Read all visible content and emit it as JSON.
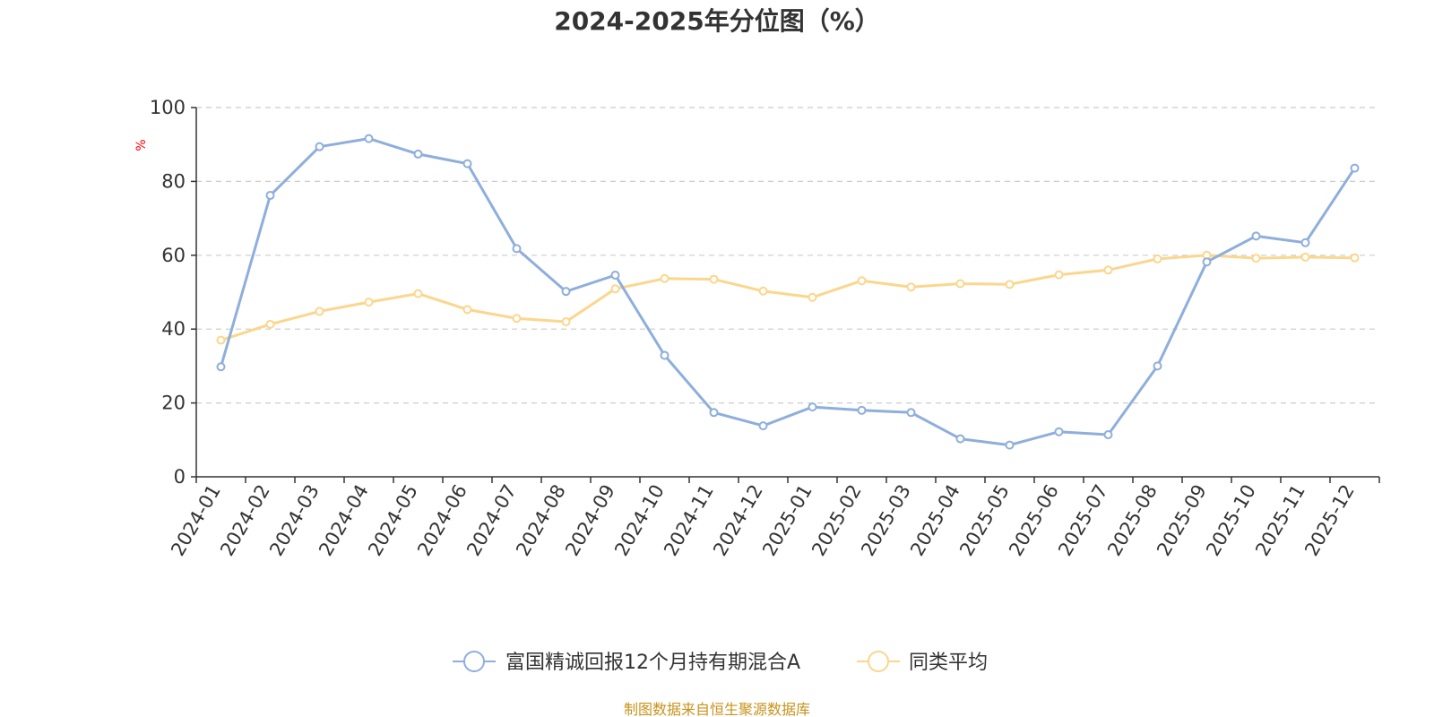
{
  "chart_data": {
    "type": "line",
    "title": "2024-2025年分位图（%）",
    "ylabel": "%",
    "xlabel": "",
    "ylim": [
      0,
      100
    ],
    "yticks": [
      0,
      20,
      40,
      60,
      80,
      100
    ],
    "grid": true,
    "legend_position": "bottom-center",
    "categories": [
      "2024-01",
      "2024-02",
      "2024-03",
      "2024-04",
      "2024-05",
      "2024-06",
      "2024-07",
      "2024-08",
      "2024-09",
      "2024-10",
      "2024-11",
      "2024-12",
      "2025-01",
      "2025-02",
      "2025-03",
      "2025-04",
      "2025-05",
      "2025-06",
      "2025-07",
      "2025-08",
      "2025-09",
      "2025-10",
      "2025-11",
      "2025-12"
    ],
    "series": [
      {
        "name": "富国精诚回报12个月持有期混合A",
        "color": "#8eaedc",
        "values": [
          29.8,
          76.2,
          89.4,
          91.6,
          87.4,
          84.8,
          61.8,
          50.2,
          54.6,
          32.9,
          17.4,
          13.8,
          18.9,
          18.0,
          17.4,
          10.3,
          8.6,
          12.2,
          11.4,
          30.0,
          58.2,
          65.2,
          63.4,
          83.6
        ]
      },
      {
        "name": "同类平均",
        "color": "#fbd68d",
        "values": [
          37.0,
          41.3,
          44.8,
          47.3,
          49.6,
          45.3,
          42.9,
          42.0,
          50.9,
          53.7,
          53.5,
          50.3,
          48.6,
          53.1,
          51.4,
          52.3,
          52.1,
          54.7,
          56.0,
          59.0,
          60.0,
          59.2,
          59.5,
          59.3
        ]
      }
    ],
    "source": "制图数据来自恒生聚源数据库"
  }
}
